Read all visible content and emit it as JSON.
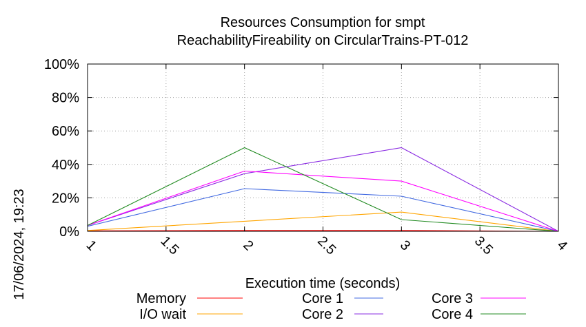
{
  "chart_data": {
    "type": "line",
    "title": "Resources Consumption for smpt",
    "subtitle": "ReachabilityFireability on CircularTrains-PT-012",
    "xlabel": "Execution time (seconds)",
    "ylabel": "",
    "side_label": "17/06/2024, 19:23",
    "xlim": [
      1,
      4
    ],
    "ylim": [
      0,
      100
    ],
    "x_ticks": [
      "1",
      "1.5",
      "2",
      "2.5",
      "3",
      "3.5",
      "4"
    ],
    "x_tick_values": [
      1,
      1.5,
      2,
      2.5,
      3,
      3.5,
      4
    ],
    "y_ticks": [
      "0%",
      "20%",
      "40%",
      "60%",
      "80%",
      "100%"
    ],
    "y_tick_values": [
      0,
      20,
      40,
      60,
      80,
      100
    ],
    "grid": true,
    "legend_position": "bottom",
    "x": [
      1,
      2,
      3,
      4
    ],
    "series": [
      {
        "name": "Memory",
        "color": "#ff0000",
        "values": [
          0.3,
          0.5,
          0.5,
          0
        ]
      },
      {
        "name": "I/O wait",
        "color": "#ffa500",
        "values": [
          0.5,
          6,
          11.5,
          0
        ]
      },
      {
        "name": "Core 1",
        "color": "#4169e1",
        "values": [
          3,
          25.5,
          21,
          0
        ]
      },
      {
        "name": "Core 2",
        "color": "#8a2be2",
        "values": [
          3.5,
          34.5,
          50,
          0
        ]
      },
      {
        "name": "Core 3",
        "color": "#ff00ff",
        "values": [
          3.5,
          36,
          30,
          0
        ]
      },
      {
        "name": "Core 4",
        "color": "#228b22",
        "values": [
          3.5,
          50,
          7,
          0
        ]
      }
    ]
  }
}
